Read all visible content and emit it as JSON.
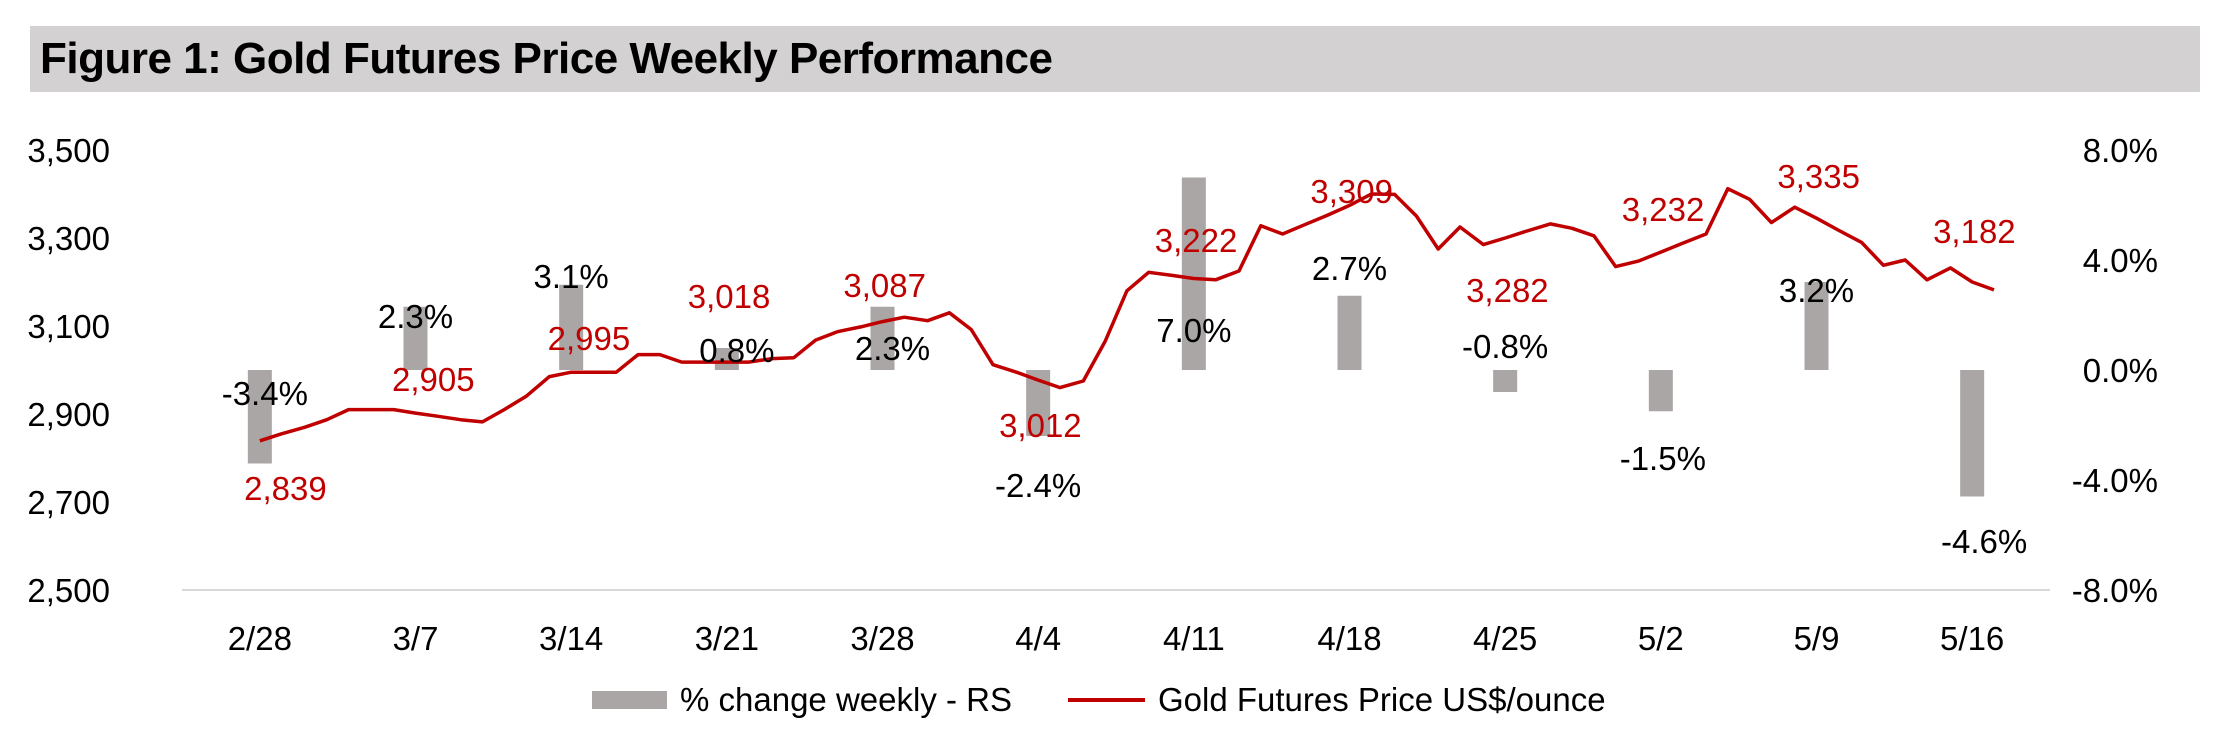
{
  "title": "Figure 1: Gold Futures Price Weekly Performance",
  "colors": {
    "price_line": "#c00000",
    "bars": "#aaa6a6",
    "axis": "#d9d9d9",
    "title_bg": "#d3d1d1"
  },
  "chart_data": {
    "type": "bar+line",
    "title": "Figure 1: Gold Futures Price Weekly Performance",
    "categories": [
      "2/28",
      "3/7",
      "3/14",
      "3/21",
      "3/28",
      "4/4",
      "4/11",
      "4/18",
      "4/25",
      "5/2",
      "5/9",
      "5/16"
    ],
    "left_axis": {
      "min": 2500,
      "max": 3500,
      "ticks": [
        "2,500",
        "2,700",
        "2,900",
        "3,100",
        "3,300",
        "3,500"
      ],
      "tick_values": [
        2500,
        2700,
        2900,
        3100,
        3300,
        3500
      ]
    },
    "right_axis": {
      "min": -8.0,
      "max": 8.0,
      "ticks": [
        "-8.0%",
        "-4.0%",
        "0.0%",
        "4.0%",
        "8.0%"
      ],
      "tick_values": [
        -8,
        -4,
        0,
        4,
        8
      ]
    },
    "series": [
      {
        "name": "% change weekly - RS",
        "type": "bar",
        "axis": "right",
        "values": [
          -3.4,
          2.3,
          3.1,
          0.8,
          2.3,
          -2.4,
          7.0,
          2.7,
          -0.8,
          -1.5,
          3.2,
          -4.6
        ],
        "labels": [
          "-3.4%",
          "2.3%",
          "3.1%",
          "0.8%",
          "2.3%",
          "-2.4%",
          "7.0%",
          "2.7%",
          "-0.8%",
          "-1.5%",
          "3.2%",
          "-4.6%"
        ]
      },
      {
        "name": "Gold Futures Price US$/ounce",
        "type": "line",
        "axis": "left",
        "x": [
          0,
          0.14,
          0.29,
          0.43,
          0.57,
          0.86,
          1.0,
          1.14,
          1.29,
          1.43,
          1.57,
          1.71,
          1.86,
          2.0,
          2.14,
          2.29,
          2.43,
          2.57,
          2.71,
          2.86,
          3.0,
          3.14,
          3.29,
          3.43,
          3.57,
          3.71,
          3.86,
          4.0,
          4.14,
          4.29,
          4.43,
          4.57,
          4.71,
          4.86,
          5.0,
          5.14,
          5.29,
          5.43,
          5.57,
          5.71,
          5.86,
          6.0,
          6.14,
          6.29,
          6.43,
          6.57,
          6.71,
          6.86,
          7.0,
          7.14,
          7.29,
          7.43,
          7.57,
          7.71,
          7.86,
          8.0,
          8.14,
          8.29,
          8.43,
          8.57,
          8.71,
          8.86,
          9.0,
          9.14,
          9.29,
          9.43,
          9.57,
          9.71,
          9.86,
          10.0,
          10.14,
          10.29,
          10.43,
          10.57,
          10.71,
          10.86,
          11.0,
          11.14
        ],
        "values": [
          2839,
          2855,
          2870,
          2887,
          2910,
          2910,
          2902,
          2895,
          2887,
          2882,
          2910,
          2940,
          2985,
          2995,
          2995,
          2995,
          3035,
          3035,
          3018,
          3018,
          3018,
          3018,
          3026,
          3028,
          3068,
          3087,
          3098,
          3110,
          3120,
          3112,
          3130,
          3092,
          3012,
          2995,
          2977,
          2960,
          2975,
          3065,
          3180,
          3222,
          3215,
          3208,
          3205,
          3225,
          3328,
          3309,
          3330,
          3352,
          3374,
          3400,
          3399,
          3350,
          3275,
          3325,
          3285,
          3300,
          3316,
          3332,
          3322,
          3305,
          3235,
          3248,
          3268,
          3288,
          3309,
          3412,
          3388,
          3335,
          3370,
          3345,
          3318,
          3290,
          3238,
          3250,
          3205,
          3232,
          3200,
          3182
        ]
      }
    ],
    "point_labels": [
      {
        "text": "2,839",
        "x": 0.1,
        "value": 2839
      },
      {
        "text": "2,905",
        "x": 1.05,
        "value": 2905
      },
      {
        "text": "2,995",
        "x": 2.05,
        "value": 2995
      },
      {
        "text": "3,018",
        "x": 2.95,
        "value": 3018
      },
      {
        "text": "3,087",
        "x": 3.95,
        "value": 3087
      },
      {
        "text": "3,012",
        "x": 4.95,
        "value": 3012
      },
      {
        "text": "3,222",
        "x": 5.95,
        "value": 3222
      },
      {
        "text": "3,309",
        "x": 6.95,
        "value": 3309
      },
      {
        "text": "3,282",
        "x": 7.95,
        "value": 3282
      },
      {
        "text": "3,232",
        "x": 8.95,
        "value": 3232
      },
      {
        "text": "3,335",
        "x": 9.95,
        "value": 3335
      },
      {
        "text": "3,182",
        "x": 10.95,
        "value": 3182
      }
    ],
    "legend": {
      "position": "bottom",
      "entries": [
        "% change weekly - RS",
        "Gold Futures Price US$/ounce"
      ]
    }
  }
}
